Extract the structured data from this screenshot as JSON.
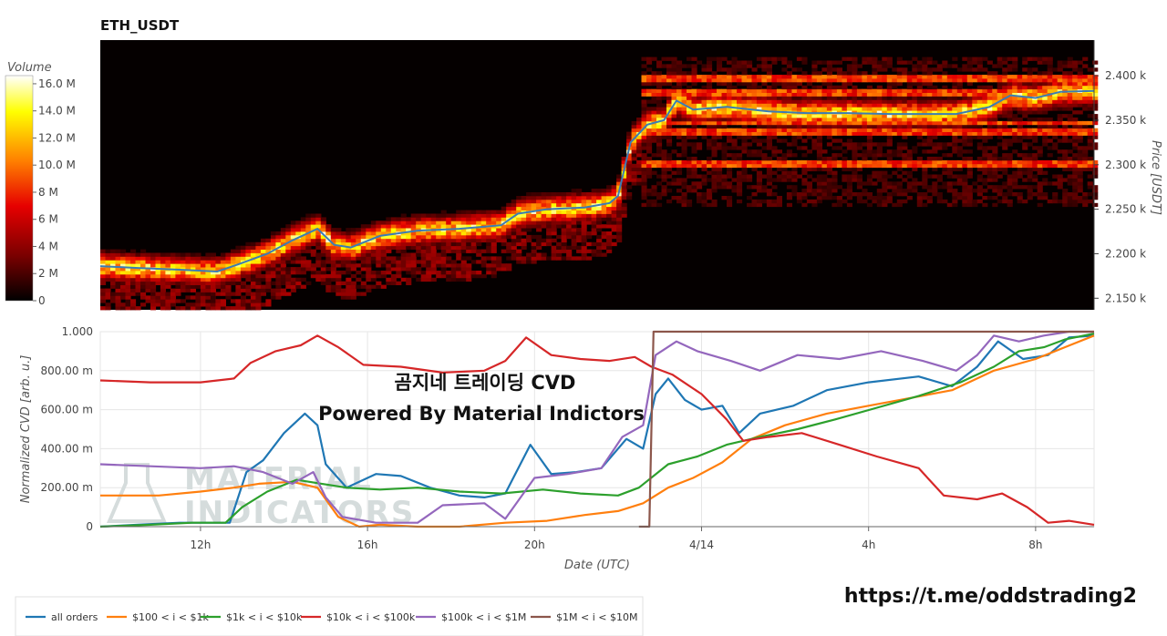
{
  "chart_data": [
    {
      "type": "heatmap",
      "title": "ETH_USDT",
      "ylabel": "Price [USDT]",
      "yticks": [
        "2.150 k",
        "2.200 k",
        "2.250 k",
        "2.300 k",
        "2.350 k",
        "2.400 k"
      ],
      "ytick_values": [
        2150,
        2200,
        2250,
        2300,
        2350,
        2400
      ],
      "ylim": [
        2137,
        2440
      ],
      "xlim": [
        9.6,
        33.4
      ],
      "colorbar": {
        "title": "Volume",
        "ticks": [
          "0",
          "2 M",
          "4 M",
          "6 M",
          "8 M",
          "10.0 M",
          "12.0 M",
          "14.0 M",
          "16.0 M"
        ],
        "tick_values": [
          0,
          2,
          4,
          6,
          8,
          10,
          12,
          14,
          16
        ],
        "range": [
          0,
          16.6
        ],
        "colors": [
          "#000000",
          "#7a0000",
          "#e60000",
          "#ff7f00",
          "#ffff00",
          "#ffffff"
        ]
      },
      "price_line": {
        "color": "#3b7cb5",
        "points": [
          [
            9.6,
            2186
          ],
          [
            10.5,
            2184
          ],
          [
            11.5,
            2182
          ],
          [
            12.4,
            2180
          ],
          [
            12.9,
            2188
          ],
          [
            13.6,
            2200
          ],
          [
            14.2,
            2215
          ],
          [
            14.8,
            2228
          ],
          [
            15.2,
            2210
          ],
          [
            15.6,
            2207
          ],
          [
            16.3,
            2220
          ],
          [
            17.2,
            2226
          ],
          [
            18.2,
            2228
          ],
          [
            19.2,
            2232
          ],
          [
            19.6,
            2245
          ],
          [
            20.3,
            2250
          ],
          [
            21.2,
            2252
          ],
          [
            21.8,
            2257
          ],
          [
            22.0,
            2265
          ],
          [
            22.3,
            2325
          ],
          [
            22.7,
            2345
          ],
          [
            23.1,
            2350
          ],
          [
            23.4,
            2372
          ],
          [
            23.8,
            2362
          ],
          [
            24.6,
            2365
          ],
          [
            25.6,
            2360
          ],
          [
            26.5,
            2358
          ],
          [
            27.5,
            2358
          ],
          [
            28.5,
            2357
          ],
          [
            29.4,
            2357
          ],
          [
            30.1,
            2357
          ],
          [
            30.9,
            2365
          ],
          [
            31.4,
            2378
          ],
          [
            32.0,
            2375
          ],
          [
            32.6,
            2382
          ],
          [
            33.4,
            2383
          ]
        ]
      }
    },
    {
      "type": "line",
      "ylabel": "Normalized CVD [arb. u.]",
      "xlabel": "Date (UTC)",
      "yticks": [
        "0",
        "200.00 m",
        "400.00 m",
        "600.00 m",
        "800.00 m",
        "1.000"
      ],
      "ytick_values": [
        0,
        0.2,
        0.4,
        0.6,
        0.8,
        1.0
      ],
      "ylim": [
        0,
        1.0
      ],
      "xlim": [
        9.6,
        33.4
      ],
      "xticks": [
        "12h",
        "16h",
        "20h",
        "4/14",
        "4h",
        "8h"
      ],
      "xtick_values": [
        12,
        16,
        20,
        24,
        28,
        32
      ],
      "series": [
        {
          "name": "all orders",
          "color": "#1f77b4",
          "points": [
            [
              9.6,
              0.0
            ],
            [
              10.5,
              0.01
            ],
            [
              11.5,
              0.02
            ],
            [
              12.3,
              0.02
            ],
            [
              12.7,
              0.02
            ],
            [
              13.1,
              0.28
            ],
            [
              13.5,
              0.34
            ],
            [
              14.0,
              0.48
            ],
            [
              14.5,
              0.58
            ],
            [
              14.8,
              0.52
            ],
            [
              15.0,
              0.32
            ],
            [
              15.5,
              0.2
            ],
            [
              16.2,
              0.27
            ],
            [
              16.8,
              0.26
            ],
            [
              17.5,
              0.2
            ],
            [
              18.2,
              0.16
            ],
            [
              18.8,
              0.15
            ],
            [
              19.3,
              0.17
            ],
            [
              19.9,
              0.42
            ],
            [
              20.4,
              0.27
            ],
            [
              21.0,
              0.28
            ],
            [
              21.6,
              0.3
            ],
            [
              22.2,
              0.45
            ],
            [
              22.6,
              0.4
            ],
            [
              22.9,
              0.68
            ],
            [
              23.2,
              0.76
            ],
            [
              23.6,
              0.65
            ],
            [
              24.0,
              0.6
            ],
            [
              24.5,
              0.62
            ],
            [
              24.9,
              0.48
            ],
            [
              25.4,
              0.58
            ],
            [
              26.2,
              0.62
            ],
            [
              27.0,
              0.7
            ],
            [
              28.0,
              0.74
            ],
            [
              29.2,
              0.77
            ],
            [
              30.0,
              0.72
            ],
            [
              30.6,
              0.82
            ],
            [
              31.1,
              0.95
            ],
            [
              31.7,
              0.86
            ],
            [
              32.3,
              0.88
            ],
            [
              32.8,
              0.97
            ],
            [
              33.4,
              0.98
            ]
          ]
        },
        {
          "name": "$100 < i < $1k",
          "color": "#ff7f0e",
          "points": [
            [
              9.6,
              0.16
            ],
            [
              11.0,
              0.16
            ],
            [
              12.0,
              0.18
            ],
            [
              12.8,
              0.2
            ],
            [
              13.4,
              0.22
            ],
            [
              14.2,
              0.23
            ],
            [
              14.8,
              0.2
            ],
            [
              15.3,
              0.05
            ],
            [
              15.8,
              0.0
            ],
            [
              16.3,
              0.01
            ],
            [
              17.2,
              0.0
            ],
            [
              18.2,
              0.0
            ],
            [
              19.3,
              0.02
            ],
            [
              20.3,
              0.03
            ],
            [
              21.2,
              0.06
            ],
            [
              22.0,
              0.08
            ],
            [
              22.6,
              0.12
            ],
            [
              23.2,
              0.2
            ],
            [
              23.8,
              0.25
            ],
            [
              24.5,
              0.33
            ],
            [
              25.2,
              0.45
            ],
            [
              26.0,
              0.52
            ],
            [
              27.0,
              0.58
            ],
            [
              28.0,
              0.62
            ],
            [
              29.0,
              0.66
            ],
            [
              30.0,
              0.7
            ],
            [
              31.0,
              0.8
            ],
            [
              32.0,
              0.86
            ],
            [
              32.7,
              0.92
            ],
            [
              33.4,
              0.98
            ]
          ]
        },
        {
          "name": "$1k < i < $10k",
          "color": "#2ca02c",
          "points": [
            [
              9.6,
              0.0
            ],
            [
              10.8,
              0.01
            ],
            [
              11.8,
              0.02
            ],
            [
              12.6,
              0.02
            ],
            [
              13.0,
              0.1
            ],
            [
              13.6,
              0.18
            ],
            [
              14.3,
              0.24
            ],
            [
              14.9,
              0.22
            ],
            [
              15.5,
              0.2
            ],
            [
              16.3,
              0.19
            ],
            [
              17.2,
              0.2
            ],
            [
              18.2,
              0.18
            ],
            [
              19.2,
              0.17
            ],
            [
              20.2,
              0.19
            ],
            [
              21.1,
              0.17
            ],
            [
              22.0,
              0.16
            ],
            [
              22.5,
              0.2
            ],
            [
              23.2,
              0.32
            ],
            [
              23.9,
              0.36
            ],
            [
              24.6,
              0.42
            ],
            [
              25.4,
              0.46
            ],
            [
              26.3,
              0.5
            ],
            [
              27.2,
              0.55
            ],
            [
              28.2,
              0.61
            ],
            [
              29.2,
              0.67
            ],
            [
              30.2,
              0.74
            ],
            [
              31.0,
              0.82
            ],
            [
              31.6,
              0.9
            ],
            [
              32.2,
              0.92
            ],
            [
              32.7,
              0.96
            ],
            [
              33.4,
              0.99
            ]
          ]
        },
        {
          "name": "$10k < i < $100k",
          "color": "#d62728",
          "points": [
            [
              9.6,
              0.75
            ],
            [
              10.8,
              0.74
            ],
            [
              12.0,
              0.74
            ],
            [
              12.8,
              0.76
            ],
            [
              13.2,
              0.84
            ],
            [
              13.8,
              0.9
            ],
            [
              14.4,
              0.93
            ],
            [
              14.8,
              0.98
            ],
            [
              15.3,
              0.92
            ],
            [
              15.9,
              0.83
            ],
            [
              16.8,
              0.82
            ],
            [
              17.8,
              0.79
            ],
            [
              18.8,
              0.8
            ],
            [
              19.3,
              0.85
            ],
            [
              19.8,
              0.97
            ],
            [
              20.4,
              0.88
            ],
            [
              21.1,
              0.86
            ],
            [
              21.8,
              0.85
            ],
            [
              22.4,
              0.87
            ],
            [
              22.8,
              0.82
            ],
            [
              23.3,
              0.78
            ],
            [
              24.0,
              0.68
            ],
            [
              24.6,
              0.55
            ],
            [
              25.0,
              0.44
            ],
            [
              25.6,
              0.46
            ],
            [
              26.4,
              0.48
            ],
            [
              27.3,
              0.42
            ],
            [
              28.2,
              0.36
            ],
            [
              29.2,
              0.3
            ],
            [
              29.8,
              0.16
            ],
            [
              30.6,
              0.14
            ],
            [
              31.2,
              0.17
            ],
            [
              31.8,
              0.1
            ],
            [
              32.3,
              0.02
            ],
            [
              32.8,
              0.03
            ],
            [
              33.4,
              0.01
            ]
          ]
        },
        {
          "name": "$100k < i < $1M",
          "color": "#9467bd",
          "points": [
            [
              9.6,
              0.32
            ],
            [
              10.8,
              0.31
            ],
            [
              12.0,
              0.3
            ],
            [
              12.8,
              0.31
            ],
            [
              13.5,
              0.28
            ],
            [
              14.2,
              0.22
            ],
            [
              14.7,
              0.28
            ],
            [
              15.0,
              0.15
            ],
            [
              15.4,
              0.05
            ],
            [
              16.2,
              0.02
            ],
            [
              17.2,
              0.02
            ],
            [
              17.8,
              0.11
            ],
            [
              18.8,
              0.12
            ],
            [
              19.3,
              0.04
            ],
            [
              20.0,
              0.25
            ],
            [
              20.8,
              0.27
            ],
            [
              21.6,
              0.3
            ],
            [
              22.1,
              0.46
            ],
            [
              22.6,
              0.52
            ],
            [
              22.9,
              0.88
            ],
            [
              23.4,
              0.95
            ],
            [
              23.9,
              0.9
            ],
            [
              24.7,
              0.85
            ],
            [
              25.4,
              0.8
            ],
            [
              26.3,
              0.88
            ],
            [
              27.3,
              0.86
            ],
            [
              28.3,
              0.9
            ],
            [
              29.3,
              0.85
            ],
            [
              30.1,
              0.8
            ],
            [
              30.6,
              0.88
            ],
            [
              31.0,
              0.98
            ],
            [
              31.6,
              0.95
            ],
            [
              32.2,
              0.98
            ],
            [
              32.8,
              1.0
            ],
            [
              33.4,
              1.0
            ]
          ]
        },
        {
          "name": "$1M < i < $10M",
          "color": "#8c564b",
          "points": [
            [
              22.5,
              0.0
            ],
            [
              22.75,
              0.0
            ],
            [
              22.85,
              1.0
            ],
            [
              33.4,
              1.0
            ]
          ]
        }
      ],
      "legend_placement": "bottom-left"
    }
  ],
  "overlay": {
    "line1": "곰지네 트레이딩 CVD",
    "line2": "Powered By Material Indictors"
  },
  "watermark": {
    "line1": "MATERIAL",
    "line2": "INDICATORS"
  },
  "link": "https://t.me/oddstrading2"
}
